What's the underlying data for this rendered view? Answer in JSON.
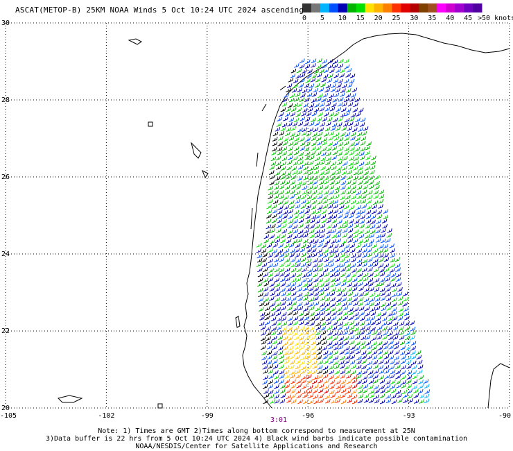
{
  "title": "ASCAT(METOP-B) 25KM NOAA Winds 5 Oct 10:24 UTC 2024 ascending",
  "legend": {
    "labels": [
      "0",
      "5",
      "10",
      "15",
      "20",
      "25",
      "30",
      "35",
      "40",
      "45",
      ">50 knots"
    ],
    "colors": [
      "#333333",
      "#777777",
      "#00b4ff",
      "#0050ff",
      "#0000b4",
      "#00b400",
      "#00e000",
      "#ffe000",
      "#ffb400",
      "#ff8000",
      "#ff3000",
      "#e00000",
      "#b40000",
      "#804000",
      "#a05020",
      "#ff00ff",
      "#d000d0",
      "#a000d0",
      "#7000c0",
      "#5000a0"
    ]
  },
  "axes": {
    "lon_labels": [
      "-105",
      "-102",
      "-99",
      "-96",
      "-93",
      "-90"
    ],
    "lat_labels": [
      "30",
      "28",
      "26",
      "24",
      "22",
      "20"
    ],
    "lon_range": [
      -105,
      -90
    ],
    "lat_range": [
      20,
      30
    ],
    "grid": "dotted"
  },
  "pass_time": "3:01",
  "notes": [
    "Note: 1) Times are GMT 2)Times along bottom correspond to measurement at 25N",
    "3)Data buffer is 22 hrs from 5 Oct 10:24 UTC 2024 4) Black wind barbs indicate possible contamination",
    "NOAA/NESDIS/Center for Satellite Applications and Research"
  ]
}
